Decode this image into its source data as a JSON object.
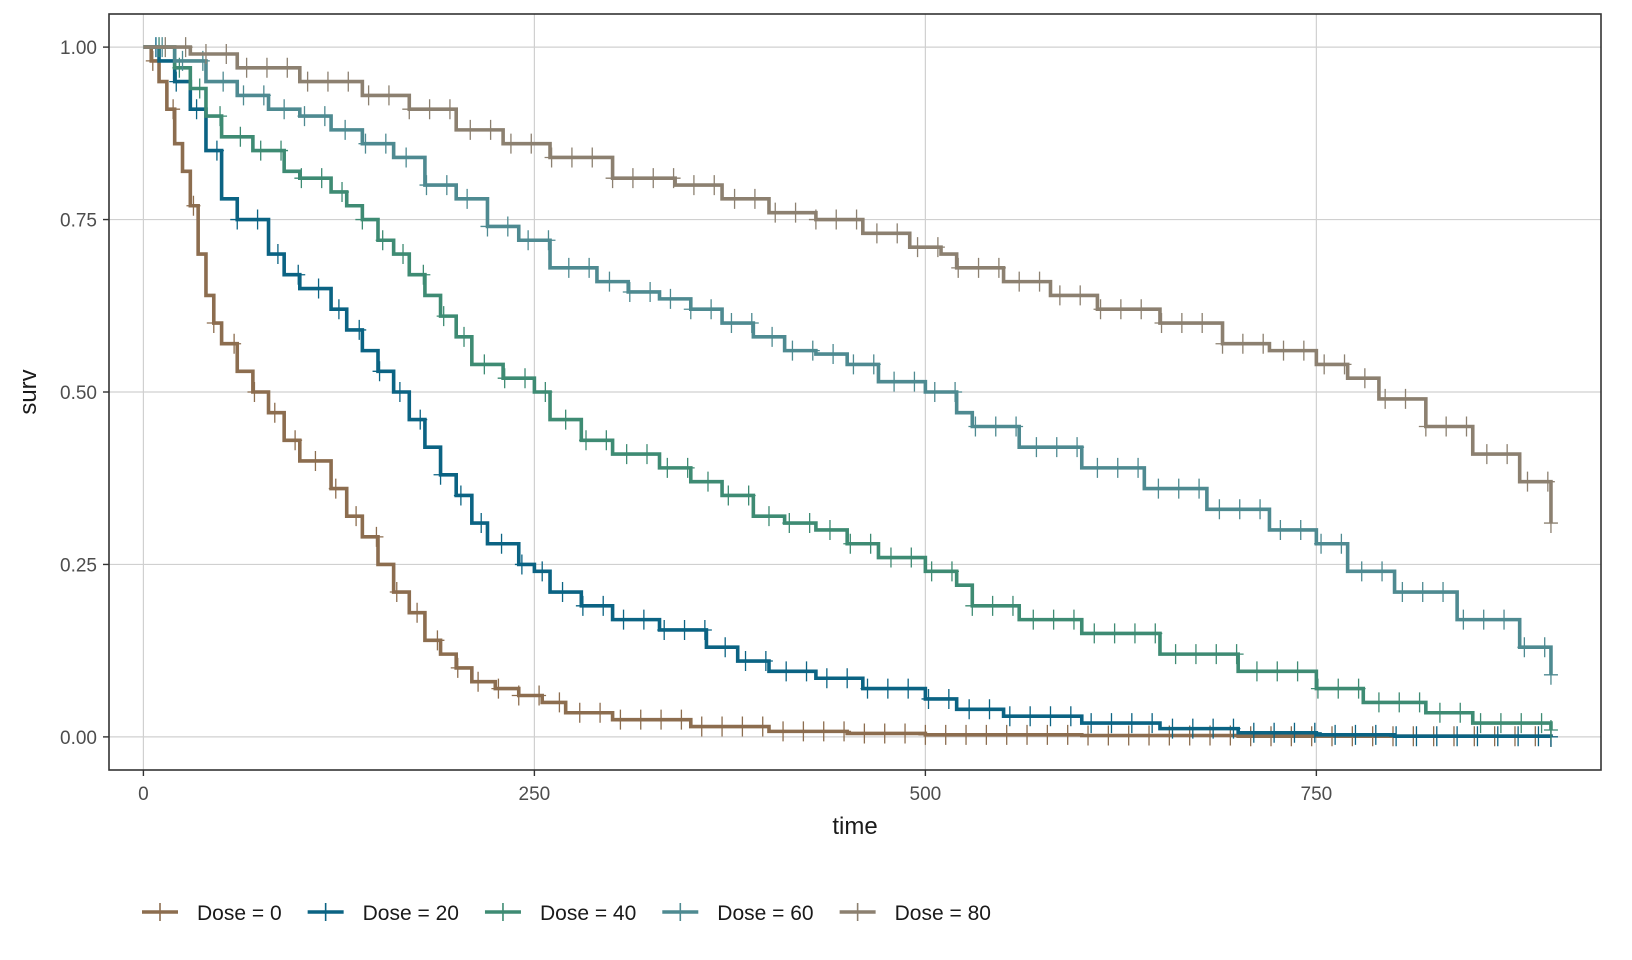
{
  "chart_data": {
    "type": "line",
    "subtype": "kaplan-meier step curves with censoring marks",
    "title": "",
    "xlabel": "time",
    "ylabel": "surv",
    "xlim": [
      -22,
      932
    ],
    "ylim": [
      -0.048,
      1.048
    ],
    "x_ticks": [
      0,
      250,
      500,
      750
    ],
    "x_tick_labels": [
      "0",
      "250",
      "500",
      "750"
    ],
    "y_ticks": [
      0,
      0.25,
      0.5,
      0.75,
      1
    ],
    "y_tick_labels": [
      "0.00",
      "0.25",
      "0.50",
      "0.75",
      "1.00"
    ],
    "grid": true,
    "legend_position": "bottom-left",
    "series": [
      {
        "name": "Dose = 0",
        "color": "#8c6d4f",
        "points": [
          [
            0,
            1.0
          ],
          [
            5,
            0.98
          ],
          [
            10,
            0.95
          ],
          [
            15,
            0.91
          ],
          [
            20,
            0.86
          ],
          [
            25,
            0.82
          ],
          [
            30,
            0.77
          ],
          [
            35,
            0.7
          ],
          [
            40,
            0.64
          ],
          [
            45,
            0.6
          ],
          [
            50,
            0.57
          ],
          [
            60,
            0.53
          ],
          [
            70,
            0.5
          ],
          [
            80,
            0.47
          ],
          [
            90,
            0.43
          ],
          [
            100,
            0.4
          ],
          [
            120,
            0.36
          ],
          [
            130,
            0.32
          ],
          [
            140,
            0.29
          ],
          [
            150,
            0.25
          ],
          [
            160,
            0.21
          ],
          [
            170,
            0.18
          ],
          [
            180,
            0.14
          ],
          [
            190,
            0.12
          ],
          [
            200,
            0.1
          ],
          [
            210,
            0.08
          ],
          [
            225,
            0.07
          ],
          [
            240,
            0.06
          ],
          [
            255,
            0.05
          ],
          [
            270,
            0.035
          ],
          [
            300,
            0.025
          ],
          [
            350,
            0.015
          ],
          [
            400,
            0.008
          ],
          [
            450,
            0.005
          ],
          [
            500,
            0.003
          ],
          [
            600,
            0.002
          ],
          [
            700,
            0.001
          ],
          [
            800,
            0.001
          ],
          [
            900,
            0.0
          ]
        ]
      },
      {
        "name": "Dose = 20",
        "color": "#0b6383",
        "points": [
          [
            0,
            1.0
          ],
          [
            10,
            0.98
          ],
          [
            20,
            0.95
          ],
          [
            30,
            0.91
          ],
          [
            40,
            0.85
          ],
          [
            50,
            0.78
          ],
          [
            60,
            0.75
          ],
          [
            80,
            0.7
          ],
          [
            90,
            0.67
          ],
          [
            100,
            0.65
          ],
          [
            120,
            0.62
          ],
          [
            130,
            0.59
          ],
          [
            140,
            0.56
          ],
          [
            150,
            0.53
          ],
          [
            160,
            0.5
          ],
          [
            170,
            0.46
          ],
          [
            180,
            0.42
          ],
          [
            190,
            0.38
          ],
          [
            200,
            0.35
          ],
          [
            210,
            0.31
          ],
          [
            220,
            0.28
          ],
          [
            240,
            0.25
          ],
          [
            250,
            0.24
          ],
          [
            260,
            0.21
          ],
          [
            280,
            0.19
          ],
          [
            300,
            0.17
          ],
          [
            330,
            0.155
          ],
          [
            360,
            0.13
          ],
          [
            380,
            0.11
          ],
          [
            400,
            0.095
          ],
          [
            430,
            0.085
          ],
          [
            460,
            0.07
          ],
          [
            500,
            0.055
          ],
          [
            520,
            0.04
          ],
          [
            550,
            0.03
          ],
          [
            600,
            0.02
          ],
          [
            650,
            0.012
          ],
          [
            700,
            0.006
          ],
          [
            750,
            0.003
          ],
          [
            800,
            0.001
          ],
          [
            900,
            0.0
          ]
        ]
      },
      {
        "name": "Dose = 40",
        "color": "#3e8b73",
        "points": [
          [
            0,
            1.0
          ],
          [
            20,
            0.97
          ],
          [
            30,
            0.94
          ],
          [
            40,
            0.9
          ],
          [
            50,
            0.87
          ],
          [
            70,
            0.85
          ],
          [
            90,
            0.82
          ],
          [
            100,
            0.81
          ],
          [
            120,
            0.79
          ],
          [
            130,
            0.77
          ],
          [
            140,
            0.75
          ],
          [
            150,
            0.72
          ],
          [
            160,
            0.7
          ],
          [
            170,
            0.67
          ],
          [
            180,
            0.64
          ],
          [
            190,
            0.61
          ],
          [
            200,
            0.58
          ],
          [
            210,
            0.54
          ],
          [
            230,
            0.52
          ],
          [
            250,
            0.5
          ],
          [
            260,
            0.46
          ],
          [
            280,
            0.43
          ],
          [
            300,
            0.41
          ],
          [
            330,
            0.39
          ],
          [
            350,
            0.37
          ],
          [
            370,
            0.35
          ],
          [
            390,
            0.32
          ],
          [
            410,
            0.31
          ],
          [
            430,
            0.3
          ],
          [
            450,
            0.28
          ],
          [
            470,
            0.26
          ],
          [
            500,
            0.24
          ],
          [
            520,
            0.22
          ],
          [
            530,
            0.19
          ],
          [
            560,
            0.17
          ],
          [
            600,
            0.15
          ],
          [
            650,
            0.12
          ],
          [
            700,
            0.095
          ],
          [
            750,
            0.07
          ],
          [
            780,
            0.05
          ],
          [
            820,
            0.035
          ],
          [
            850,
            0.02
          ],
          [
            900,
            0.01
          ]
        ]
      },
      {
        "name": "Dose = 60",
        "color": "#4e8a91",
        "points": [
          [
            0,
            1.0
          ],
          [
            20,
            0.98
          ],
          [
            40,
            0.95
          ],
          [
            60,
            0.93
          ],
          [
            80,
            0.91
          ],
          [
            100,
            0.9
          ],
          [
            120,
            0.88
          ],
          [
            140,
            0.86
          ],
          [
            160,
            0.84
          ],
          [
            180,
            0.8
          ],
          [
            200,
            0.78
          ],
          [
            220,
            0.74
          ],
          [
            240,
            0.72
          ],
          [
            260,
            0.68
          ],
          [
            290,
            0.66
          ],
          [
            310,
            0.645
          ],
          [
            330,
            0.635
          ],
          [
            350,
            0.62
          ],
          [
            370,
            0.6
          ],
          [
            390,
            0.58
          ],
          [
            410,
            0.56
          ],
          [
            430,
            0.555
          ],
          [
            450,
            0.54
          ],
          [
            470,
            0.515
          ],
          [
            500,
            0.5
          ],
          [
            520,
            0.47
          ],
          [
            530,
            0.45
          ],
          [
            560,
            0.42
          ],
          [
            600,
            0.39
          ],
          [
            640,
            0.36
          ],
          [
            680,
            0.33
          ],
          [
            720,
            0.3
          ],
          [
            750,
            0.28
          ],
          [
            770,
            0.24
          ],
          [
            800,
            0.21
          ],
          [
            840,
            0.17
          ],
          [
            880,
            0.13
          ],
          [
            900,
            0.09
          ]
        ]
      },
      {
        "name": "Dose = 80",
        "color": "#8c8070",
        "points": [
          [
            0,
            1.0
          ],
          [
            30,
            0.99
          ],
          [
            60,
            0.97
          ],
          [
            100,
            0.95
          ],
          [
            140,
            0.93
          ],
          [
            170,
            0.91
          ],
          [
            200,
            0.88
          ],
          [
            230,
            0.86
          ],
          [
            260,
            0.84
          ],
          [
            300,
            0.81
          ],
          [
            340,
            0.8
          ],
          [
            370,
            0.78
          ],
          [
            400,
            0.76
          ],
          [
            430,
            0.75
          ],
          [
            460,
            0.73
          ],
          [
            490,
            0.71
          ],
          [
            510,
            0.7
          ],
          [
            520,
            0.68
          ],
          [
            550,
            0.66
          ],
          [
            580,
            0.64
          ],
          [
            610,
            0.62
          ],
          [
            650,
            0.6
          ],
          [
            690,
            0.57
          ],
          [
            720,
            0.56
          ],
          [
            750,
            0.54
          ],
          [
            770,
            0.52
          ],
          [
            790,
            0.49
          ],
          [
            820,
            0.45
          ],
          [
            850,
            0.41
          ],
          [
            880,
            0.37
          ],
          [
            900,
            0.31
          ]
        ]
      }
    ]
  }
}
